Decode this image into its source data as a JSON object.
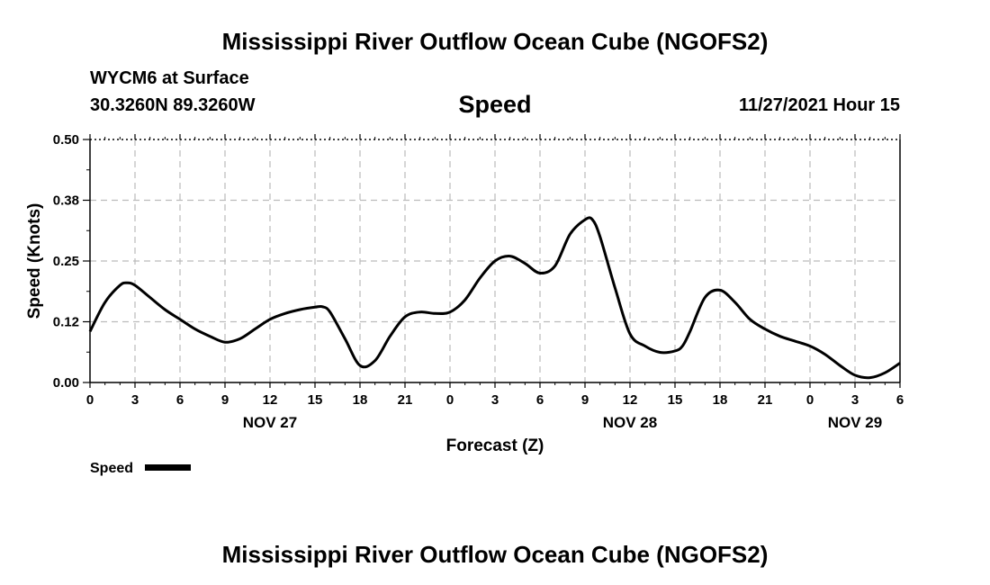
{
  "header": {
    "title": "Mississippi River Outflow Ocean Cube (NGOFS2)",
    "station": "WYCM6 at Surface",
    "coords": "30.3260N  89.3260W",
    "chart_title": "Speed",
    "datetime": "11/27/2021 Hour 15"
  },
  "footer": {
    "title": "Mississippi River Outflow Ocean Cube (NGOFS2)"
  },
  "colors": {
    "line": "#000000",
    "grid": "#bbbbbb",
    "background": "#ffffff"
  },
  "chart_data": {
    "type": "line",
    "title": "Speed",
    "xlabel": "Forecast (Z)",
    "ylabel": "Speed (Knots)",
    "xlim": [
      0,
      54
    ],
    "ylim": [
      0,
      0.5
    ],
    "grid": true,
    "legend_placement": "bottom-left",
    "y_ticks": [
      0.0,
      0.125,
      0.25,
      0.375,
      0.5
    ],
    "y_tick_labels": [
      "0.00",
      "0.12",
      "0.25",
      "0.38",
      "0.50"
    ],
    "x_ticks": [
      0,
      3,
      6,
      9,
      12,
      15,
      18,
      21,
      24,
      27,
      30,
      33,
      36,
      39,
      42,
      45,
      48,
      51,
      54
    ],
    "x_tick_labels": [
      "0",
      "3",
      "6",
      "9",
      "12",
      "15",
      "18",
      "21",
      "0",
      "3",
      "6",
      "9",
      "12",
      "15",
      "18",
      "21",
      "0",
      "3",
      "6"
    ],
    "day_labels": [
      {
        "x": 12,
        "label": "NOV 27"
      },
      {
        "x": 36,
        "label": "NOV 28"
      },
      {
        "x": 51,
        "label": "NOV 29"
      }
    ],
    "series": [
      {
        "name": "Speed",
        "x": [
          0,
          1,
          2,
          2.5,
          3,
          4,
          5,
          6,
          7,
          8,
          9,
          10,
          11,
          12,
          13,
          14,
          15,
          15.5,
          16,
          17,
          18,
          19,
          20,
          21,
          22,
          23,
          24,
          25,
          26,
          27,
          28,
          29,
          30,
          31,
          32,
          33,
          33.5,
          34,
          35,
          36,
          37,
          38,
          39,
          39.5,
          40,
          41,
          42,
          43,
          44,
          45,
          46,
          47,
          48,
          49,
          50,
          51,
          52,
          53,
          54
        ],
        "y": [
          0.105,
          0.165,
          0.2,
          0.205,
          0.2,
          0.175,
          0.15,
          0.13,
          0.11,
          0.095,
          0.083,
          0.09,
          0.11,
          0.13,
          0.142,
          0.15,
          0.155,
          0.156,
          0.145,
          0.09,
          0.035,
          0.045,
          0.095,
          0.135,
          0.145,
          0.142,
          0.145,
          0.17,
          0.215,
          0.25,
          0.26,
          0.245,
          0.225,
          0.24,
          0.305,
          0.335,
          0.335,
          0.3,
          0.195,
          0.1,
          0.075,
          0.062,
          0.065,
          0.075,
          0.105,
          0.175,
          0.19,
          0.165,
          0.13,
          0.11,
          0.095,
          0.085,
          0.075,
          0.058,
          0.035,
          0.015,
          0.01,
          0.02,
          0.04
        ]
      }
    ],
    "legend": [
      {
        "label": "Speed"
      }
    ]
  }
}
